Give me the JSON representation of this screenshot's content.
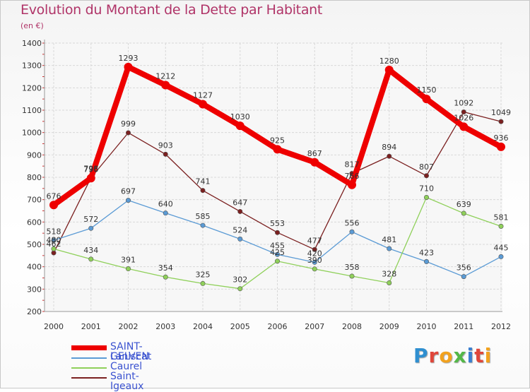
{
  "title": "Evolution du Montant de la Dette par Habitant",
  "unit": "(en €)",
  "brand": {
    "letters": [
      "P",
      "r",
      "o",
      "x",
      "i",
      "t",
      "i"
    ],
    "colors": [
      "#2f8fd0",
      "#e0463a",
      "#f2a21e",
      "#54b848",
      "#3b7fd0",
      "#e0463a",
      "#f2a21e"
    ]
  },
  "chart_data": {
    "type": "line",
    "x": [
      "2000",
      "2001",
      "2002",
      "2003",
      "2004",
      "2005",
      "2006",
      "2007",
      "2008",
      "2009",
      "2010",
      "2011",
      "2012"
    ],
    "ylim": [
      200,
      1400
    ],
    "yticks": [
      "200",
      "300",
      "400",
      "500",
      "600",
      "700",
      "800",
      "900",
      "1000",
      "1100",
      "1200",
      "1300",
      "1400"
    ],
    "grid": true,
    "legend_position": "bottom-left",
    "series": [
      {
        "name": "SAINT-GELVEN",
        "color": "#ee0000",
        "values": [
          676,
          796,
          1293,
          1212,
          1127,
          1030,
          925,
          867,
          766,
          1280,
          1150,
          1026,
          936
        ],
        "labels": [
          "676",
          "796",
          "1293",
          "1212",
          "1127",
          "1030",
          "925",
          "867",
          "766",
          "1280",
          "1150",
          "1026",
          "936"
        ]
      },
      {
        "name": "Laniscat",
        "color": "#5b9bd5",
        "values": [
          518,
          572,
          697,
          640,
          585,
          524,
          455,
          420,
          556,
          481,
          423,
          356,
          445
        ],
        "labels": [
          "518",
          "572",
          "697",
          "640",
          "585",
          "524",
          "455",
          "420",
          "556",
          "481",
          "423",
          "356",
          "445"
        ]
      },
      {
        "name": "Caurel",
        "color": "#8fd05a",
        "values": [
          480,
          434,
          391,
          354,
          325,
          302,
          425,
          390,
          358,
          328,
          710,
          639,
          581
        ],
        "labels": [
          "480",
          "434",
          "391",
          "354",
          "325",
          "302",
          "425",
          "390",
          "358",
          "328",
          "710",
          "639",
          "581"
        ]
      },
      {
        "name": "Saint-Igeaux",
        "color": "#7b2020",
        "values": [
          462,
          798,
          999,
          903,
          741,
          647,
          553,
          477,
          817,
          894,
          807,
          1092,
          1049
        ],
        "labels": [
          "462",
          "798",
          "999",
          "903",
          "741",
          "647",
          "553",
          "477",
          "817",
          "894",
          "807",
          "1092",
          "1049"
        ]
      }
    ]
  }
}
